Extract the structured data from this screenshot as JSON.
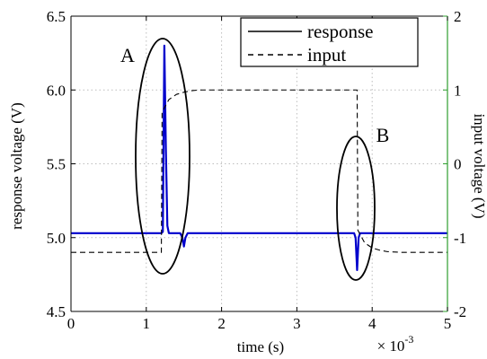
{
  "chart_data": {
    "type": "line",
    "xlabel": "time (s)",
    "x_multiplier": "× 10",
    "x_multiplier_exponent": "-3",
    "ylabel_left": "response voltage (V)",
    "ylabel_right": "input voltage (V)",
    "xlim": [
      0,
      5
    ],
    "ylim_left": [
      4.5,
      6.5
    ],
    "ylim_right": [
      -2,
      2
    ],
    "xticks": [
      "0",
      "1",
      "2",
      "3",
      "4",
      "5"
    ],
    "yticks_left": [
      "4.5",
      "5.0",
      "5.5",
      "6.0",
      "6.5"
    ],
    "yticks_right": [
      "-2",
      "-1",
      "0",
      "1",
      "2"
    ],
    "grid": true,
    "legend": {
      "placement": "top-right",
      "entries": [
        "response",
        "input"
      ]
    },
    "annotations": [
      {
        "label": "A",
        "x": 1.28,
        "y_left": 5.55
      },
      {
        "label": "B",
        "x": 3.8,
        "y_left": 5.05
      }
    ],
    "series": [
      {
        "name": "response",
        "axis": "left",
        "color": "#0000cc",
        "x": [
          0,
          1.2,
          1.22,
          1.24,
          1.26,
          1.28,
          1.3,
          1.33,
          1.45,
          1.48,
          1.5,
          1.52,
          1.55,
          3.76,
          3.78,
          3.8,
          3.82,
          3.84,
          5
        ],
        "y": [
          5.03,
          5.03,
          5.04,
          6.3,
          5.6,
          5.08,
          5.03,
          5.03,
          5.03,
          5.0,
          4.94,
          5.0,
          5.03,
          5.03,
          5.0,
          4.78,
          5.0,
          5.03,
          5.03
        ]
      },
      {
        "name": "input",
        "axis": "right",
        "color": "#000000",
        "dash": "dashed",
        "x": [
          0,
          1.2,
          1.21,
          1.3,
          1.4,
          1.5,
          1.6,
          1.7,
          1.8,
          2.0,
          3.8,
          3.81,
          3.9,
          4.0,
          4.1,
          4.2,
          4.4,
          5
        ],
        "y": [
          -1.2,
          -1.2,
          0.7,
          0.87,
          0.94,
          0.97,
          0.99,
          1.0,
          1.0,
          1.0,
          1.0,
          -0.9,
          -1.07,
          -1.14,
          -1.17,
          -1.19,
          -1.2,
          -1.2
        ]
      }
    ]
  }
}
